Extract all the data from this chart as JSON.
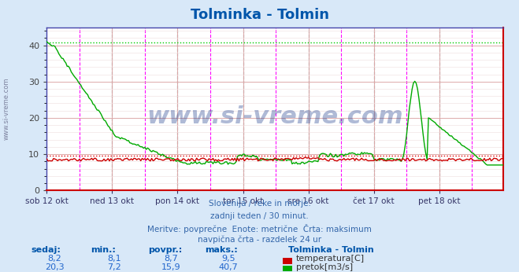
{
  "title": "Tolminka - Tolmin",
  "title_color": "#0055aa",
  "bg_color": "#d8e8f8",
  "plot_bg_color": "#ffffff",
  "xlabel_ticks": [
    "sob 12 okt",
    "ned 13 okt",
    "pon 14 okt",
    "tor 15 okt",
    "sre 16 okt",
    "čet 17 okt",
    "pet 18 okt"
  ],
  "tick_positions": [
    0,
    48,
    96,
    144,
    192,
    240,
    288
  ],
  "total_points": 336,
  "ylim": [
    0,
    45
  ],
  "yticks": [
    0,
    10,
    20,
    30,
    40
  ],
  "hline_max_temp": 9.5,
  "hline_max_flow": 40.7,
  "temp_color": "#cc0000",
  "flow_color": "#00aa00",
  "watermark": "www.si-vreme.com",
  "watermark_color": "#1a3a8a",
  "subtitle_lines": [
    "Slovenija / reke in morje.",
    "zadnji teden / 30 minut.",
    "Meritve: povprečne  Enote: metrične  Črta: maksimum",
    "navpična črta - razdelek 24 ur"
  ],
  "legend_title": "Tolminka - Tolmin",
  "legend_temp_label": "temperatura[C]",
  "legend_flow_label": "pretok[m3/s]",
  "sidebar_text": "www.si-vreme.com",
  "table_headers": [
    "sedaj:",
    "min.:",
    "povpr.:",
    "maks.:"
  ],
  "table_temp": [
    "8,2",
    "8,1",
    "8,7",
    "9,5"
  ],
  "table_flow": [
    "20,3",
    "7,2",
    "15,9",
    "40,7"
  ]
}
